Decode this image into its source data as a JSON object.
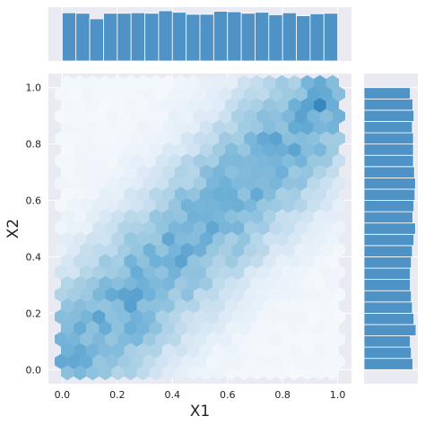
{
  "chart_data": {
    "type": "hexbin-joint",
    "xlabel": "X1",
    "ylabel": "X2",
    "xlim": [
      -0.05,
      1.05
    ],
    "ylim": [
      -0.05,
      1.05
    ],
    "xticks": [
      "0.0",
      "0.2",
      "0.4",
      "0.6",
      "0.8",
      "1.0"
    ],
    "yticks": [
      "0.0",
      "0.2",
      "0.4",
      "0.6",
      "0.8",
      "1.0"
    ],
    "xtick_values": [
      0.0,
      0.2,
      0.4,
      0.6,
      0.8,
      1.0
    ],
    "ytick_values": [
      0.0,
      0.2,
      0.4,
      0.6,
      0.8,
      1.0
    ],
    "grid": true,
    "background_color": "#eaeaf2",
    "bar_color": "#4f93c6",
    "colormap": [
      "#ffffff",
      "#d6e6f4",
      "#9ecae1",
      "#6aaed6",
      "#3182bd",
      "#08306b",
      "#000000"
    ],
    "hexbin": {
      "gridsize": 24,
      "pattern": "density concentrated along the x1 = x2 diagonal, highest near (0, 0) and (1, 1), low in the off-diagonal corners",
      "hotspots": [
        {
          "x": 0.98,
          "y": 0.98,
          "intensity": 1.0
        },
        {
          "x": 0.95,
          "y": 0.94,
          "intensity": 0.9
        },
        {
          "x": 0.93,
          "y": 0.98,
          "intensity": 0.8
        },
        {
          "x": 0.02,
          "y": 0.05,
          "intensity": 0.75
        },
        {
          "x": 0.07,
          "y": 0.12,
          "intensity": 0.6
        },
        {
          "x": 0.83,
          "y": 0.88,
          "intensity": 0.6
        },
        {
          "x": 0.05,
          "y": 0.0,
          "intensity": 0.5
        }
      ]
    },
    "marginal_x": {
      "bins": 20,
      "relative_counts": [
        0.96,
        0.95,
        0.84,
        0.95,
        0.95,
        0.96,
        0.95,
        1.0,
        0.97,
        0.93,
        0.93,
        0.99,
        0.98,
        0.95,
        0.97,
        0.92,
        0.96,
        0.9,
        0.94,
        0.95
      ]
    },
    "marginal_y": {
      "bins": 25,
      "relative_counts_bottom_to_top": [
        0.94,
        0.91,
        0.89,
        1.0,
        0.96,
        0.93,
        0.91,
        0.89,
        0.89,
        0.91,
        0.93,
        0.96,
        0.99,
        0.94,
        0.96,
        0.98,
        0.99,
        0.97,
        0.95,
        0.95,
        0.95,
        0.93,
        0.96,
        0.94,
        0.89
      ]
    }
  }
}
